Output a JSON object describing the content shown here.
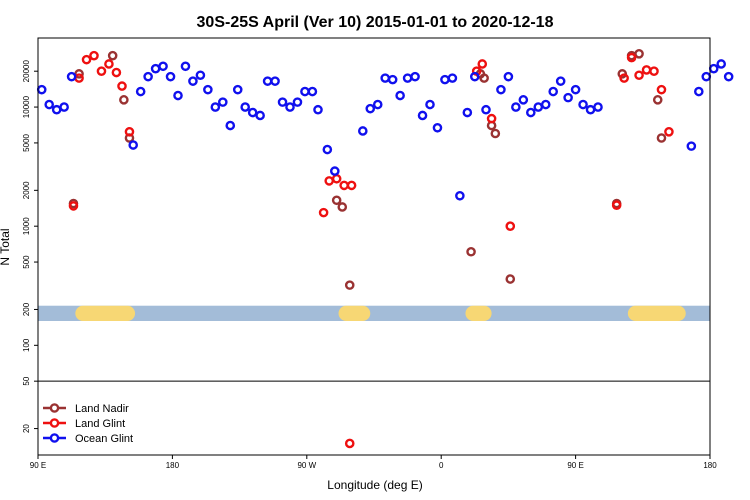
{
  "chart_data": {
    "type": "scatter",
    "title": "30S-25S April (Ver 10)   2015-01-01 to 2020-12-18",
    "xlabel": "Longitude (deg E)",
    "ylabel": "N Total",
    "y_scale": "log",
    "xlim": [
      90,
      450
    ],
    "ylim": [
      12,
      38000
    ],
    "x_ticks": [
      {
        "value": 90,
        "label": "90 E"
      },
      {
        "value": 162,
        "label": "180"
      },
      {
        "value": 234,
        "label": "90 W"
      },
      {
        "value": 306,
        "label": "0"
      },
      {
        "value": 378,
        "label": "90 E"
      },
      {
        "value": 450,
        "label": "180"
      }
    ],
    "y_ticks": [
      {
        "value": 20,
        "label": "20"
      },
      {
        "value": 50,
        "label": "50"
      },
      {
        "value": 100,
        "label": "100"
      },
      {
        "value": 200,
        "label": "200"
      },
      {
        "value": 500,
        "label": "500"
      },
      {
        "value": 1000,
        "label": "1000"
      },
      {
        "value": 2000,
        "label": "2000"
      },
      {
        "value": 5000,
        "label": "5000"
      },
      {
        "value": 10000,
        "label": "10000"
      },
      {
        "value": 20000,
        "label": "20000"
      }
    ],
    "reference_line": 50,
    "surface_band": {
      "y_range": [
        160,
        215
      ],
      "ocean_color": "#a3bcd8",
      "land_color": "#f7d774",
      "land_segments": [
        [
          110,
          142
        ],
        [
          251,
          268
        ],
        [
          319,
          333
        ],
        [
          406,
          437
        ]
      ]
    },
    "series": [
      {
        "name": "Land Nadir",
        "color": "#9a3232",
        "points": [
          [
            109,
            1550
          ],
          [
            112,
            19000
          ],
          [
            130,
            27000
          ],
          [
            136,
            11500
          ],
          [
            139,
            5500
          ],
          [
            250,
            1650
          ],
          [
            253,
            1450
          ],
          [
            257,
            320
          ],
          [
            322,
            610
          ],
          [
            327,
            19000
          ],
          [
            329,
            17500
          ],
          [
            333,
            7000
          ],
          [
            335,
            6000
          ],
          [
            343,
            360
          ],
          [
            400,
            1550
          ],
          [
            403,
            19000
          ],
          [
            408,
            27000
          ],
          [
            412,
            28000
          ],
          [
            422,
            11500
          ],
          [
            424,
            5500
          ]
        ]
      },
      {
        "name": "Land Glint",
        "color": "#ee1010",
        "points": [
          [
            109,
            1480
          ],
          [
            112,
            17500
          ],
          [
            116,
            25000
          ],
          [
            120,
            27000
          ],
          [
            124,
            20000
          ],
          [
            128,
            23000
          ],
          [
            132,
            19500
          ],
          [
            135,
            15000
          ],
          [
            139,
            6200
          ],
          [
            243,
            1300
          ],
          [
            246,
            2400
          ],
          [
            250,
            2500
          ],
          [
            254,
            2200
          ],
          [
            258,
            2200
          ],
          [
            257,
            15
          ],
          [
            325,
            20000
          ],
          [
            328,
            23000
          ],
          [
            333,
            8000
          ],
          [
            343,
            1000
          ],
          [
            400,
            1500
          ],
          [
            404,
            17500
          ],
          [
            408,
            26000
          ],
          [
            412,
            18500
          ],
          [
            416,
            20500
          ],
          [
            420,
            20000
          ],
          [
            424,
            14000
          ],
          [
            428,
            6200
          ]
        ]
      },
      {
        "name": "Ocean Glint",
        "color": "#1010ee",
        "points": [
          [
            92,
            14000
          ],
          [
            96,
            10500
          ],
          [
            100,
            9500
          ],
          [
            104,
            10000
          ],
          [
            108,
            18000
          ],
          [
            141,
            4800
          ],
          [
            145,
            13500
          ],
          [
            149,
            18000
          ],
          [
            153,
            21000
          ],
          [
            157,
            22000
          ],
          [
            161,
            18000
          ],
          [
            165,
            12500
          ],
          [
            169,
            22000
          ],
          [
            173,
            16500
          ],
          [
            177,
            18500
          ],
          [
            181,
            14000
          ],
          [
            185,
            10000
          ],
          [
            189,
            11000
          ],
          [
            193,
            7000
          ],
          [
            197,
            14000
          ],
          [
            201,
            10000
          ],
          [
            205,
            9000
          ],
          [
            209,
            8500
          ],
          [
            213,
            16500
          ],
          [
            217,
            16500
          ],
          [
            221,
            11000
          ],
          [
            225,
            10000
          ],
          [
            229,
            11000
          ],
          [
            233,
            13500
          ],
          [
            237,
            13500
          ],
          [
            240,
            9500
          ],
          [
            245,
            4400
          ],
          [
            249,
            2900
          ],
          [
            264,
            6300
          ],
          [
            268,
            9700
          ],
          [
            272,
            10500
          ],
          [
            276,
            17500
          ],
          [
            280,
            17000
          ],
          [
            284,
            12500
          ],
          [
            288,
            17500
          ],
          [
            292,
            18000
          ],
          [
            296,
            8500
          ],
          [
            300,
            10500
          ],
          [
            304,
            6700
          ],
          [
            308,
            17000
          ],
          [
            312,
            17500
          ],
          [
            316,
            1800
          ],
          [
            320,
            9000
          ],
          [
            324,
            18000
          ],
          [
            330,
            9500
          ],
          [
            338,
            14000
          ],
          [
            342,
            18000
          ],
          [
            346,
            10000
          ],
          [
            350,
            11500
          ],
          [
            354,
            9000
          ],
          [
            358,
            10000
          ],
          [
            362,
            10500
          ],
          [
            366,
            13500
          ],
          [
            370,
            16500
          ],
          [
            374,
            12000
          ],
          [
            378,
            14000
          ],
          [
            382,
            10500
          ],
          [
            386,
            9500
          ],
          [
            390,
            10000
          ],
          [
            440,
            4700
          ],
          [
            444,
            13500
          ],
          [
            448,
            18000
          ],
          [
            452,
            21000
          ],
          [
            456,
            23000
          ],
          [
            460,
            18000
          ]
        ]
      }
    ],
    "legend": {
      "position": "bottom-left",
      "entries": [
        "Land Nadir",
        "Land Glint",
        "Ocean Glint"
      ]
    }
  }
}
